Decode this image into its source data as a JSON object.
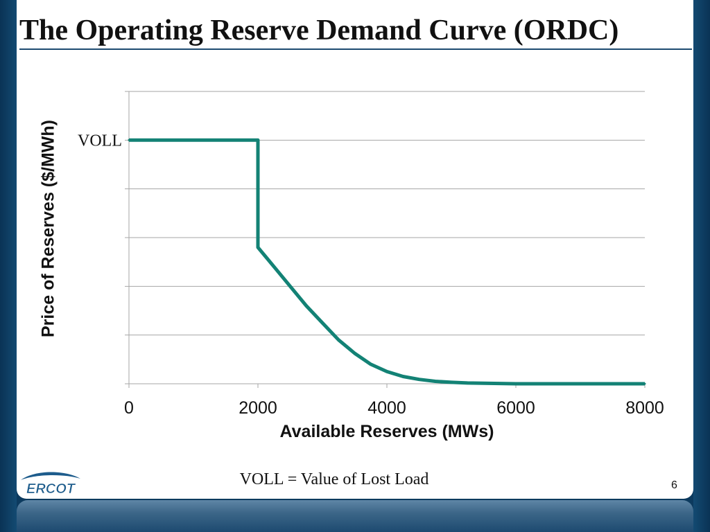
{
  "slide": {
    "title": "The Operating Reserve Demand Curve (ORDC)",
    "footnote": "VOLL = Value of Lost Load",
    "page_number": "6",
    "logo_text": "ERCOT"
  },
  "colors": {
    "curve": "#138275",
    "grid": "#a6a6a6",
    "frame": "#0c3a5e",
    "title_rule": "#1d4a70",
    "logo": "#1d5c8c"
  },
  "chart_data": {
    "type": "line",
    "title": "",
    "xlabel": "Available Reserves (MWs)",
    "ylabel": "Price of Reserves ($/MWh)",
    "xlim": [
      0,
      8000
    ],
    "ylim": [
      0,
      1.2
    ],
    "x_ticks": [
      0,
      2000,
      4000,
      6000,
      8000
    ],
    "x_tick_labels": [
      "0",
      "2000",
      "4000",
      "6000",
      "8000"
    ],
    "y_gridlines": [
      0,
      0.2,
      0.4,
      0.6,
      0.8,
      1.0,
      1.2
    ],
    "y_annotation": {
      "label": "VOLL",
      "y": 1.0
    },
    "grid": true,
    "legend": "none",
    "series": [
      {
        "x": [
          0,
          2000,
          2000,
          2250,
          2500,
          2750,
          3000,
          3250,
          3500,
          3750,
          4000,
          4250,
          4500,
          4750,
          5000,
          5250,
          5500,
          5750,
          6000,
          7000,
          8000
        ],
        "y": [
          1.0,
          1.0,
          0.56,
          0.48,
          0.4,
          0.32,
          0.25,
          0.18,
          0.125,
          0.08,
          0.05,
          0.03,
          0.018,
          0.01,
          0.006,
          0.003,
          0.002,
          0.001,
          0.0,
          0.0,
          0.0
        ]
      }
    ]
  }
}
